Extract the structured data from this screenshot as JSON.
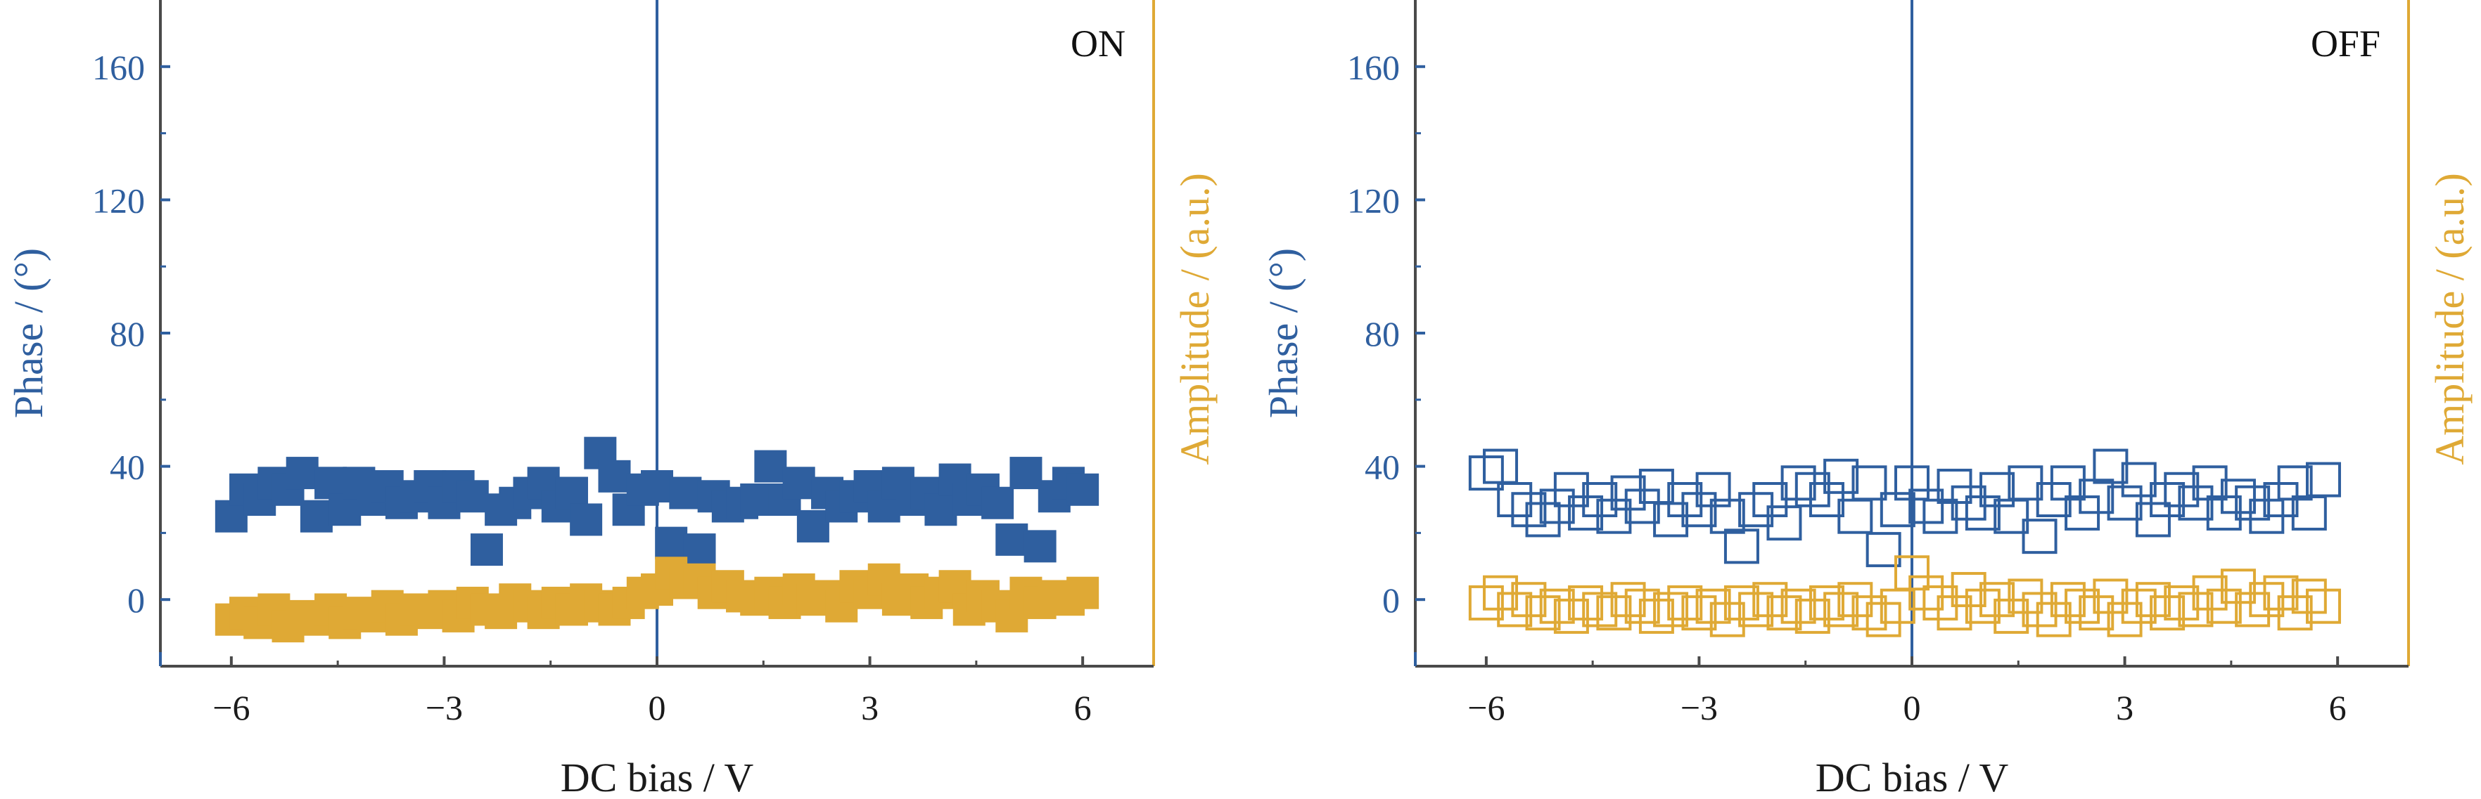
{
  "figure": {
    "phase_color": "#2f5f9f",
    "amplitude_color": "#dfa935",
    "axis_color": "#4a4a4a"
  },
  "chart_data": [
    {
      "type": "scatter",
      "label": "ON",
      "marker_fill": "filled",
      "xlabel": "DC bias / V",
      "ylabel_left": "Phase / (°)",
      "ylabel_right": "Amplitude / (a.u.)",
      "xlim": [
        -7,
        7
      ],
      "ylim": [
        -20,
        180
      ],
      "x_ticks": [
        -6,
        -3,
        0,
        3,
        6
      ],
      "x_tick_labels": [
        "−6",
        "−3",
        "0",
        "3",
        "6"
      ],
      "y_ticks": [
        0,
        40,
        80,
        120,
        160
      ],
      "y_tick_labels": [
        "0",
        "40",
        "80",
        "120",
        "160"
      ],
      "grid": false,
      "vertical_line_x": 0,
      "series": [
        {
          "axis": "left",
          "color": "#2f5f9f",
          "x": [
            -6.0,
            -5.8,
            -5.6,
            -5.4,
            -5.2,
            -5.0,
            -4.8,
            -4.6,
            -4.4,
            -4.2,
            -4.0,
            -3.8,
            -3.6,
            -3.4,
            -3.2,
            -3.0,
            -2.8,
            -2.6,
            -2.4,
            -2.2,
            -2.0,
            -1.8,
            -1.6,
            -1.4,
            -1.2,
            -1.0,
            -0.8,
            -0.6,
            -0.4,
            -0.2,
            0.0,
            0.2,
            0.4,
            0.6,
            0.8,
            1.0,
            1.2,
            1.4,
            1.6,
            1.8,
            2.0,
            2.2,
            2.4,
            2.6,
            2.8,
            3.0,
            3.2,
            3.4,
            3.6,
            3.8,
            4.0,
            4.2,
            4.4,
            4.6,
            4.8,
            5.0,
            5.2,
            5.4,
            5.6,
            5.8,
            6.0
          ],
          "y": [
            25,
            33,
            30,
            35,
            33,
            38,
            25,
            35,
            27,
            35,
            30,
            34,
            29,
            31,
            34,
            29,
            34,
            31,
            15,
            27,
            29,
            32,
            35,
            28,
            32,
            24,
            44,
            37,
            27,
            33,
            34,
            17,
            32,
            15,
            31,
            28,
            29,
            30,
            40,
            30,
            35,
            22,
            32,
            28,
            31,
            34,
            28,
            35,
            30,
            32,
            27,
            36,
            30,
            33,
            29,
            18,
            38,
            16,
            31,
            35,
            33
          ]
        },
        {
          "axis": "right",
          "color": "#dfa935",
          "x": [
            -6.0,
            -5.8,
            -5.6,
            -5.4,
            -5.2,
            -5.0,
            -4.8,
            -4.6,
            -4.4,
            -4.2,
            -4.0,
            -3.8,
            -3.6,
            -3.4,
            -3.2,
            -3.0,
            -2.8,
            -2.6,
            -2.4,
            -2.2,
            -2.0,
            -1.8,
            -1.6,
            -1.4,
            -1.2,
            -1.0,
            -0.8,
            -0.6,
            -0.4,
            -0.2,
            0.0,
            0.2,
            0.4,
            0.6,
            0.8,
            1.0,
            1.2,
            1.4,
            1.6,
            1.8,
            2.0,
            2.2,
            2.4,
            2.6,
            2.8,
            3.0,
            3.2,
            3.4,
            3.6,
            3.8,
            4.0,
            4.2,
            4.4,
            4.6,
            4.8,
            5.0,
            5.2,
            5.4,
            5.6,
            5.8,
            6.0
          ],
          "y": [
            -6,
            -4,
            -7,
            -3,
            -8,
            -5,
            -6,
            -3,
            -7,
            -4,
            -5,
            -2,
            -6,
            -3,
            -4,
            -2,
            -5,
            -1,
            -3,
            -4,
            0,
            -2,
            -4,
            -1,
            -3,
            0,
            -2,
            -3,
            -1,
            2,
            3,
            8,
            5,
            6,
            2,
            4,
            1,
            0,
            2,
            -1,
            3,
            0,
            1,
            -2,
            4,
            2,
            6,
            0,
            3,
            -1,
            2,
            4,
            -3,
            1,
            -2,
            -5,
            2,
            -1,
            1,
            0,
            2
          ]
        }
      ]
    },
    {
      "type": "scatter",
      "label": "OFF",
      "marker_fill": "hollow",
      "xlabel": "DC bias / V",
      "ylabel_left": "Phase / (°)",
      "ylabel_right": "Amplitude / (a.u.)",
      "xlim": [
        -7,
        7
      ],
      "ylim": [
        -20,
        180
      ],
      "x_ticks": [
        -6,
        -3,
        0,
        3,
        6
      ],
      "x_tick_labels": [
        "−6",
        "−3",
        "0",
        "3",
        "6"
      ],
      "y_ticks": [
        0,
        40,
        80,
        120,
        160
      ],
      "y_tick_labels": [
        "0",
        "40",
        "80",
        "120",
        "160"
      ],
      "grid": false,
      "vertical_line_x": 0,
      "series": [
        {
          "axis": "left",
          "color": "#2f5f9f",
          "x": [
            -6.0,
            -5.8,
            -5.6,
            -5.4,
            -5.2,
            -5.0,
            -4.8,
            -4.6,
            -4.4,
            -4.2,
            -4.0,
            -3.8,
            -3.6,
            -3.4,
            -3.2,
            -3.0,
            -2.8,
            -2.6,
            -2.4,
            -2.2,
            -2.0,
            -1.8,
            -1.6,
            -1.4,
            -1.2,
            -1.0,
            -0.8,
            -0.6,
            -0.4,
            -0.2,
            0.0,
            0.2,
            0.4,
            0.6,
            0.8,
            1.0,
            1.2,
            1.4,
            1.6,
            1.8,
            2.0,
            2.2,
            2.4,
            2.6,
            2.8,
            3.0,
            3.2,
            3.4,
            3.6,
            3.8,
            4.0,
            4.2,
            4.4,
            4.6,
            4.8,
            5.0,
            5.2,
            5.4,
            5.6,
            5.8
          ],
          "y": [
            38,
            40,
            30,
            27,
            24,
            28,
            33,
            26,
            30,
            25,
            32,
            28,
            34,
            24,
            30,
            27,
            33,
            25,
            16,
            27,
            30,
            23,
            35,
            33,
            30,
            37,
            25,
            35,
            15,
            27,
            35,
            28,
            25,
            34,
            29,
            26,
            33,
            25,
            35,
            19,
            30,
            35,
            26,
            31,
            40,
            29,
            36,
            24,
            30,
            33,
            29,
            35,
            26,
            31,
            29,
            25,
            30,
            35,
            26,
            36
          ]
        },
        {
          "axis": "right",
          "color": "#dfa935",
          "x": [
            -6.0,
            -5.8,
            -5.6,
            -5.4,
            -5.2,
            -5.0,
            -4.8,
            -4.6,
            -4.4,
            -4.2,
            -4.0,
            -3.8,
            -3.6,
            -3.4,
            -3.2,
            -3.0,
            -2.8,
            -2.6,
            -2.4,
            -2.2,
            -2.0,
            -1.8,
            -1.6,
            -1.4,
            -1.2,
            -1.0,
            -0.8,
            -0.6,
            -0.4,
            -0.2,
            0.0,
            0.2,
            0.4,
            0.6,
            0.8,
            1.0,
            1.2,
            1.4,
            1.6,
            1.8,
            2.0,
            2.2,
            2.4,
            2.6,
            2.8,
            3.0,
            3.2,
            3.4,
            3.6,
            3.8,
            4.0,
            4.2,
            4.4,
            4.6,
            4.8,
            5.0,
            5.2,
            5.4,
            5.6,
            5.8
          ],
          "y": [
            -1,
            2,
            -3,
            0,
            -4,
            -2,
            -5,
            -1,
            -3,
            -4,
            0,
            -2,
            -5,
            -3,
            -1,
            -4,
            -2,
            -6,
            -1,
            -3,
            0,
            -4,
            -2,
            -5,
            -1,
            -3,
            0,
            -4,
            -6,
            -2,
            8,
            2,
            -1,
            -4,
            3,
            -2,
            0,
            -5,
            1,
            -3,
            -6,
            0,
            -2,
            -4,
            1,
            -6,
            -2,
            0,
            -4,
            -1,
            -3,
            2,
            -2,
            4,
            -3,
            0,
            2,
            -4,
            1,
            -2
          ]
        }
      ]
    }
  ]
}
